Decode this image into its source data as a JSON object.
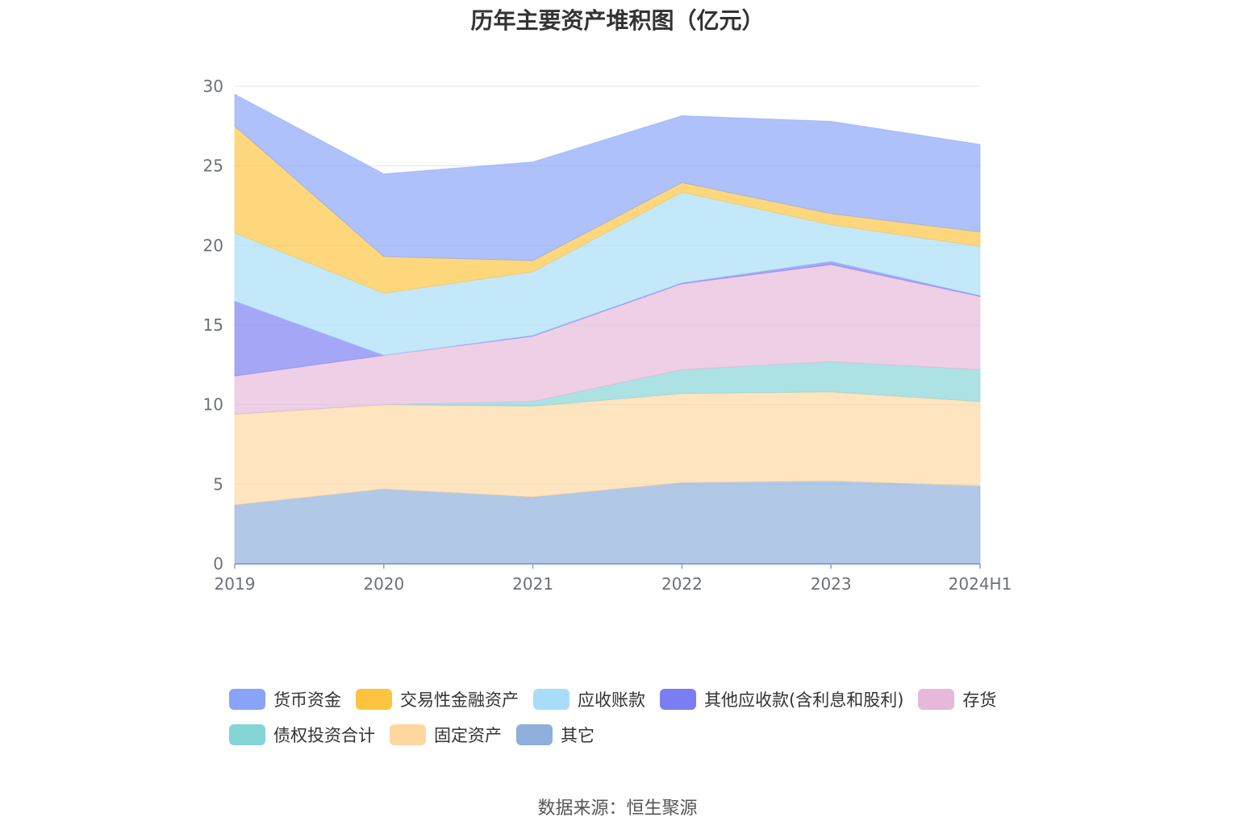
{
  "title": "历年主要资产堆积图（亿元）",
  "source": "数据来源：恒生聚源",
  "chart_data": {
    "type": "area",
    "stacked": true,
    "x": [
      "2019",
      "2020",
      "2021",
      "2022",
      "2023",
      "2024H1"
    ],
    "ylim": [
      0,
      30
    ],
    "yticks": [
      0,
      5,
      10,
      15,
      20,
      25,
      30
    ],
    "grid": true,
    "legend_position": "bottom",
    "series": [
      {
        "name": "其它",
        "color": "#8eaedb",
        "values": [
          3.7,
          4.7,
          4.2,
          5.1,
          5.2,
          4.9
        ]
      },
      {
        "name": "固定资产",
        "color": "#fdd7a0",
        "values": [
          5.7,
          5.3,
          5.7,
          5.6,
          5.6,
          5.3
        ]
      },
      {
        "name": "债权投资合计",
        "color": "#85d4d6",
        "values": [
          0.0,
          0.0,
          0.3,
          1.5,
          1.9,
          2.0
        ]
      },
      {
        "name": "存货",
        "color": "#e6b8d9",
        "values": [
          2.4,
          3.1,
          4.1,
          5.4,
          6.1,
          4.6
        ]
      },
      {
        "name": "其他应收款(含利息和股利)",
        "color": "#7b7ef2",
        "values": [
          4.7,
          0.0,
          0.05,
          0.05,
          0.2,
          0.05
        ]
      },
      {
        "name": "应收账款",
        "color": "#a7ddf8",
        "values": [
          4.3,
          3.9,
          4.0,
          5.7,
          2.3,
          3.1
        ]
      },
      {
        "name": "交易性金融资产",
        "color": "#fec43f",
        "values": [
          6.7,
          2.3,
          0.7,
          0.6,
          0.7,
          0.9
        ]
      },
      {
        "name": "货币资金",
        "color": "#88a3f8",
        "values": [
          2.0,
          5.2,
          6.2,
          4.2,
          5.8,
          5.5
        ]
      }
    ]
  }
}
